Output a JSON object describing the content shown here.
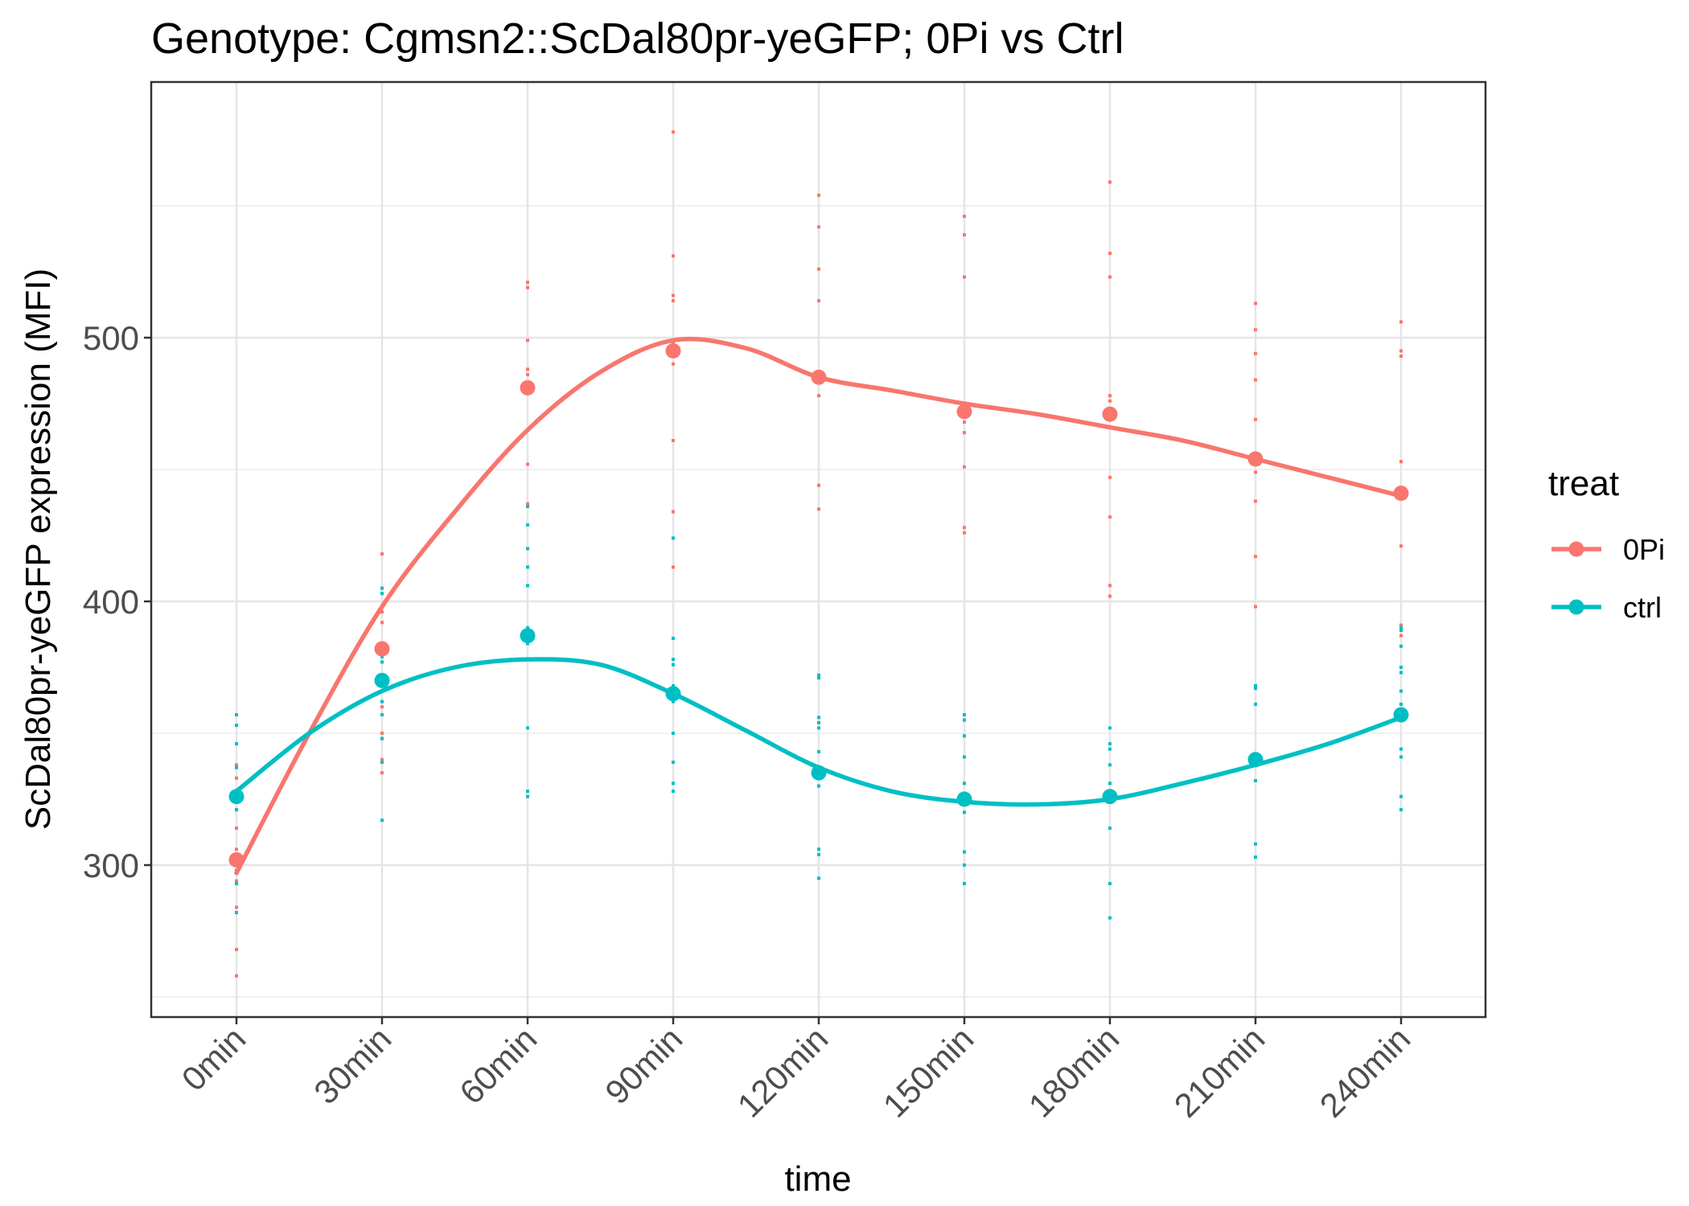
{
  "chart_data": {
    "type": "line",
    "title": "Genotype: Cgmsn2::ScDal80pr-yeGFP; 0Pi vs Ctrl",
    "xlabel": "time",
    "ylabel": "ScDal80pr-yeGFP expression (MFI)",
    "categories": [
      "0min",
      "30min",
      "60min",
      "90min",
      "120min",
      "150min",
      "180min",
      "210min",
      "240min"
    ],
    "x_minutes": [
      0,
      30,
      60,
      90,
      120,
      150,
      180,
      210,
      240
    ],
    "ylim": [
      243,
      582
    ],
    "yticks": [
      300,
      400,
      500
    ],
    "grid": true,
    "legend": {
      "title": "treat",
      "position": "right"
    },
    "series": [
      {
        "name": "0Pi",
        "color": "#F8766D",
        "means": [
          302,
          382,
          481,
          495,
          485,
          472,
          471,
          454,
          441
        ],
        "smooth": [
          [
            0,
            297
          ],
          [
            15,
            350
          ],
          [
            30,
            398
          ],
          [
            45,
            434
          ],
          [
            60,
            465
          ],
          [
            75,
            487
          ],
          [
            90,
            499
          ],
          [
            105,
            496
          ],
          [
            120,
            485
          ],
          [
            135,
            480
          ],
          [
            150,
            475
          ],
          [
            165,
            471
          ],
          [
            180,
            466
          ],
          [
            195,
            461
          ],
          [
            210,
            454
          ],
          [
            225,
            447
          ],
          [
            240,
            440
          ]
        ],
        "replicates": [
          [
            258,
            268,
            284,
            294,
            300,
            306,
            314,
            321,
            328,
            333,
            338
          ],
          [
            335,
            340,
            348,
            350,
            360,
            372,
            383,
            392,
            396,
            418
          ],
          [
            437,
            452,
            465,
            486,
            488,
            499,
            519,
            521
          ],
          [
            413,
            434,
            461,
            490,
            498,
            514,
            516,
            531,
            578
          ],
          [
            435,
            444,
            478,
            486,
            514,
            526,
            542,
            554
          ],
          [
            426,
            428,
            451,
            464,
            468,
            523,
            539,
            546
          ],
          [
            402,
            406,
            432,
            447,
            476,
            478,
            523,
            532,
            559
          ],
          [
            398,
            417,
            438,
            449,
            469,
            484,
            494,
            503,
            513
          ],
          [
            387,
            391,
            421,
            453,
            493,
            495,
            506
          ]
        ]
      },
      {
        "name": "ctrl",
        "color": "#00BFC4",
        "means": [
          326,
          370,
          387,
          365,
          335,
          325,
          326,
          340,
          357
        ],
        "smooth": [
          [
            0,
            328
          ],
          [
            15,
            350
          ],
          [
            30,
            366
          ],
          [
            45,
            375
          ],
          [
            60,
            378
          ],
          [
            75,
            376
          ],
          [
            90,
            365
          ],
          [
            105,
            351
          ],
          [
            120,
            337
          ],
          [
            135,
            328
          ],
          [
            150,
            324
          ],
          [
            165,
            323
          ],
          [
            180,
            325
          ],
          [
            195,
            331
          ],
          [
            210,
            338
          ],
          [
            225,
            346
          ],
          [
            240,
            356
          ]
        ],
        "replicates": [
          [
            282,
            293,
            298,
            321,
            328,
            337,
            346,
            353,
            357
          ],
          [
            317,
            339,
            348,
            357,
            362,
            369,
            377,
            379,
            403,
            405
          ],
          [
            326,
            328,
            352,
            384,
            390,
            406,
            413,
            420,
            429,
            436
          ],
          [
            328,
            331,
            339,
            350,
            362,
            368,
            376,
            378,
            386,
            424
          ],
          [
            295,
            304,
            306,
            330,
            335,
            343,
            352,
            354,
            356,
            371,
            372
          ],
          [
            293,
            300,
            305,
            320,
            324,
            331,
            341,
            349,
            355,
            357
          ],
          [
            280,
            293,
            314,
            326,
            331,
            338,
            344,
            346,
            352
          ],
          [
            303,
            308,
            332,
            338,
            341,
            361,
            367,
            368
          ],
          [
            321,
            326,
            341,
            344,
            361,
            366,
            373,
            375,
            383,
            389,
            390
          ]
        ]
      }
    ]
  }
}
